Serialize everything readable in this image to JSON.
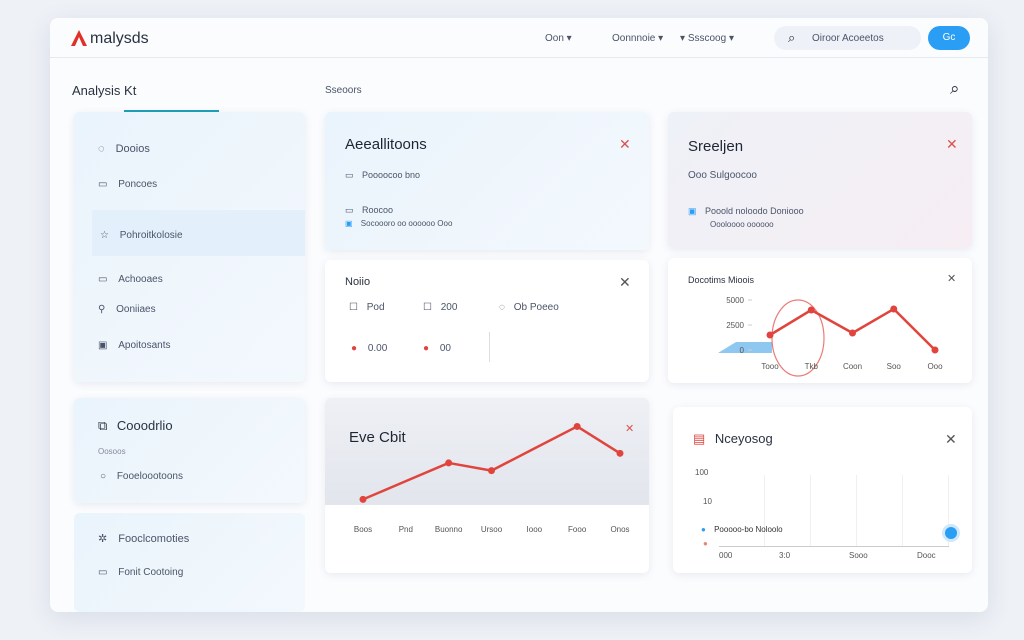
{
  "header": {
    "brand": "malysds",
    "nav": [
      "Oon",
      "Oonnnoie",
      "Ssscoog"
    ],
    "search": "Oiroor Acoeetos",
    "button": "Gc"
  },
  "page": {
    "title": "Analysis Kt",
    "tab": "Sseoors"
  },
  "sidebar": {
    "items": [
      "Dooios",
      "Poncoes",
      "Pohroitkolosie",
      "Achooaes",
      "Ooniiaes",
      "Apoitosants"
    ]
  },
  "panel2": {
    "title": "Cooodrlio",
    "subtitle": "Oosoos",
    "item": "Fooeloootoons"
  },
  "panel3": {
    "items": [
      "Fooclcomoties",
      "Fonit Cootoing"
    ]
  },
  "cards": {
    "actions": {
      "title": "Aeeallitoons",
      "items": [
        "Poooocoo bno",
        "Roocoo",
        "Socoooro oo oooooo Ooo"
      ]
    },
    "special": {
      "title": "Sreeljen",
      "subtitle": "Ooo Sulgoocoo",
      "items": [
        "Pooold noloodo Doniooo",
        "Oooloooo oooooo"
      ]
    },
    "notes": {
      "title": "Noiio",
      "options": [
        "Pod",
        "200",
        "Ob Poeeo"
      ],
      "amounts": [
        "0.00",
        "00"
      ]
    },
    "trend": {
      "type": "line",
      "title": "Docotims Mioois",
      "categories": [
        "Tooo",
        "Tkb",
        "Coon",
        "Soo",
        "Ooo"
      ],
      "values": [
        1500,
        4000,
        1700,
        4100,
        0
      ],
      "ylim": [
        0,
        5000
      ],
      "yticks": [
        0,
        2500,
        5000
      ],
      "color": "#e0453d"
    },
    "eve": {
      "type": "line",
      "title": "Eve Cbit",
      "categories": [
        "Boos",
        "Pnd",
        "Buonno",
        "Ursoo",
        "Iooo",
        "Fooo",
        "Onos"
      ],
      "values": [
        10,
        29,
        48,
        40,
        63,
        86,
        58
      ],
      "ylim": [
        0,
        100
      ],
      "color": "#e0453d"
    },
    "newsy": {
      "title": "Nceyosog",
      "axis_labels": [
        "100",
        "10"
      ],
      "legend": [
        "Pooooo-bo Noloolo"
      ],
      "categories": [
        "000",
        "3:0",
        "Sooo",
        "Dooc"
      ]
    }
  }
}
